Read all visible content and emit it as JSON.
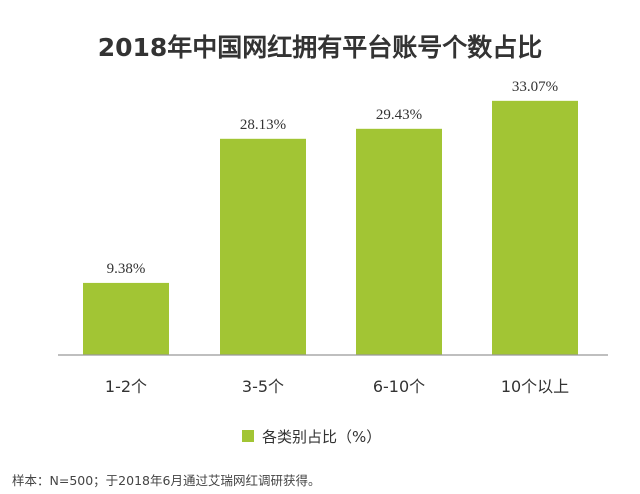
{
  "chart_data": {
    "type": "bar",
    "title": "2018年中国网红拥有平台账号个数占比",
    "categories": [
      "1-2个",
      "3-5个",
      "6-10个",
      "10个以上"
    ],
    "series": [
      {
        "name": "各类别占比（%）",
        "values": [
          9.38,
          28.13,
          29.43,
          33.07
        ],
        "labels": [
          "9.38%",
          "28.13%",
          "29.43%",
          "33.07%"
        ],
        "color": "#A2C534"
      }
    ],
    "ylim": [
      0,
      35
    ],
    "grid": false,
    "legend_position": "bottom"
  },
  "source_note": "样本：N=500；于2018年6月通过艾瑞网红调研获得。",
  "colors": {
    "bar": "#A2C534",
    "axis": "#999999",
    "text": "#333333"
  }
}
